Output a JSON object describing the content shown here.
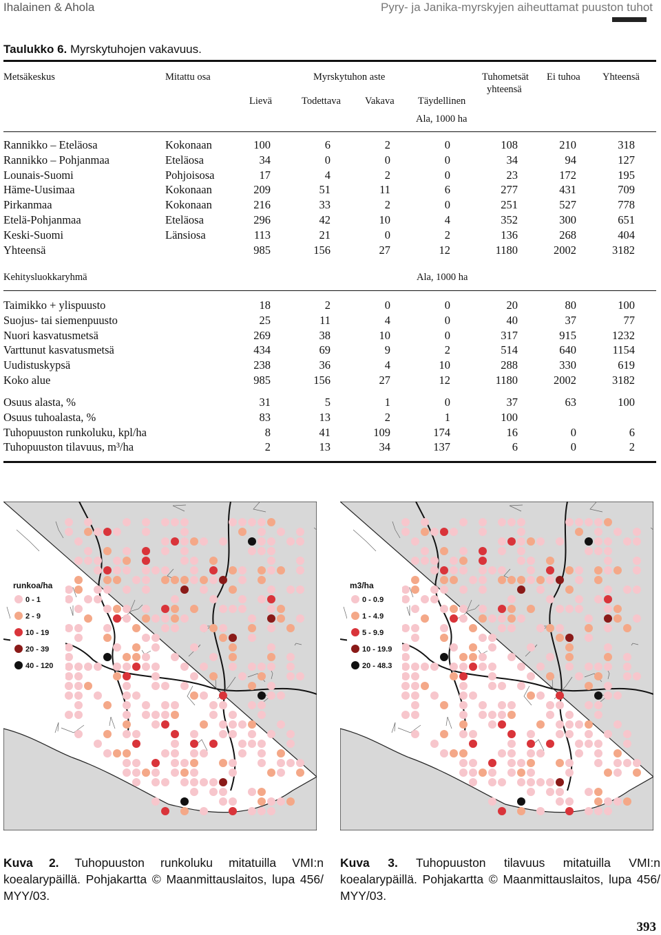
{
  "header": {
    "left": "Ihalainen & Ahola",
    "right": "Pyry- ja Janika-myrskyjen aiheuttamat puuston tuhot"
  },
  "table": {
    "label": "Taulukko 6.",
    "title": "Myrskytuhojen vakavuus.",
    "head": {
      "col_region": "Metsäkeskus",
      "col_part": "Mitattu osa",
      "col_severity": "Myrskytuhon aste",
      "col_total_damage_1": "Tuhometsät",
      "col_total_damage_2": "yhteensä",
      "col_no_damage": "Ei tuhoa",
      "col_total": "Yhteensä",
      "sub": [
        "Lievä",
        "Todettava",
        "Vakava",
        "Täydellinen"
      ],
      "unit": "Ala, 1000 ha"
    },
    "rows1": [
      {
        "name": "Rannikko – Eteläosa",
        "part": "Kokonaan",
        "v": [
          "100",
          "6",
          "2",
          "0",
          "108",
          "210",
          "318"
        ]
      },
      {
        "name": "Rannikko – Pohjanmaa",
        "part": "Eteläosa",
        "v": [
          "34",
          "0",
          "0",
          "0",
          "34",
          "94",
          "127"
        ]
      },
      {
        "name": "Lounais-Suomi",
        "part": "Pohjoisosa",
        "v": [
          "17",
          "4",
          "2",
          "0",
          "23",
          "172",
          "195"
        ]
      },
      {
        "name": "Häme-Uusimaa",
        "part": "Kokonaan",
        "v": [
          "209",
          "51",
          "11",
          "6",
          "277",
          "431",
          "709"
        ]
      },
      {
        "name": "Pirkanmaa",
        "part": "Kokonaan",
        "v": [
          "216",
          "33",
          "2",
          "0",
          "251",
          "527",
          "778"
        ]
      },
      {
        "name": "Etelä-Pohjanmaa",
        "part": "Eteläosa",
        "v": [
          "296",
          "42",
          "10",
          "4",
          "352",
          "300",
          "651"
        ]
      },
      {
        "name": "Keski-Suomi",
        "part": "Länsiosa",
        "v": [
          "113",
          "21",
          "0",
          "2",
          "136",
          "268",
          "404"
        ]
      },
      {
        "name": "Yhteensä",
        "part": "",
        "v": [
          "985",
          "156",
          "27",
          "12",
          "1180",
          "2002",
          "3182"
        ]
      }
    ],
    "section2_label": "Kehitysluokkaryhmä",
    "section2_unit": "Ala, 1000 ha",
    "rows2": [
      {
        "name": "Taimikko + ylispuusto",
        "v": [
          "18",
          "2",
          "0",
          "0",
          "20",
          "80",
          "100"
        ]
      },
      {
        "name": "Suojus- tai siemenpuusto",
        "v": [
          "25",
          "11",
          "4",
          "0",
          "40",
          "37",
          "77"
        ]
      },
      {
        "name": "Nuori kasvatusmetsä",
        "v": [
          "269",
          "38",
          "10",
          "0",
          "317",
          "915",
          "1232"
        ]
      },
      {
        "name": "Varttunut kasvatusmetsä",
        "v": [
          "434",
          "69",
          "9",
          "2",
          "514",
          "640",
          "1154"
        ]
      },
      {
        "name": "Uudistuskypsä",
        "v": [
          "238",
          "36",
          "4",
          "10",
          "288",
          "330",
          "619"
        ]
      },
      {
        "name": "Koko alue",
        "v": [
          "985",
          "156",
          "27",
          "12",
          "1180",
          "2002",
          "3182"
        ]
      }
    ],
    "rows3": [
      {
        "name": "Osuus alasta, %",
        "v": [
          "31",
          "5",
          "1",
          "0",
          "37",
          "63",
          "100"
        ]
      },
      {
        "name": "Osuus tuhoalasta, %",
        "v": [
          "83",
          "13",
          "2",
          "1",
          "100",
          "",
          ""
        ]
      },
      {
        "name": "Tuhopuuston runkoluku, kpl/ha",
        "v": [
          "8",
          "41",
          "109",
          "174",
          "16",
          "0",
          "6"
        ]
      },
      {
        "name": "Tuhopuuston tilavuus, m³/ha",
        "v": [
          "2",
          "13",
          "34",
          "137",
          "6",
          "0",
          "2"
        ]
      }
    ]
  },
  "map_left": {
    "legend_title": "runkoa/ha",
    "legend": [
      {
        "label": "0 - 1",
        "color": "#f7c6cc"
      },
      {
        "label": "2 - 9",
        "color": "#f4a888"
      },
      {
        "label": "10 - 19",
        "color": "#d9343a"
      },
      {
        "label": "20 - 39",
        "color": "#8a1a18"
      },
      {
        "label": "40 - 120",
        "color": "#111111"
      }
    ]
  },
  "map_right": {
    "legend_title": "m3/ha",
    "legend": [
      {
        "label": "0 - 0.9",
        "color": "#f7c6cc"
      },
      {
        "label": "1 - 4.9",
        "color": "#f4a888"
      },
      {
        "label": "5 - 9.9",
        "color": "#d9343a"
      },
      {
        "label": "10 - 19.9",
        "color": "#8a1a18"
      },
      {
        "label": "20 - 48.3",
        "color": "#111111"
      }
    ]
  },
  "kuva2": {
    "label": "Kuva 2.",
    "text": "Tuhopuuston runkoluku mitatuilla VMI:n koealarypäillä. Pohjakartta © Maanmittauslaitos, lupa 456/ MYY/03."
  },
  "kuva3": {
    "label": "Kuva 3.",
    "text": "Tuhopuuston tilavuus mitatuilla VMI:n koealarypäillä. Pohjakartta © Maanmittauslaitos, lupa 456/ MYY/03."
  },
  "page_number": "393"
}
